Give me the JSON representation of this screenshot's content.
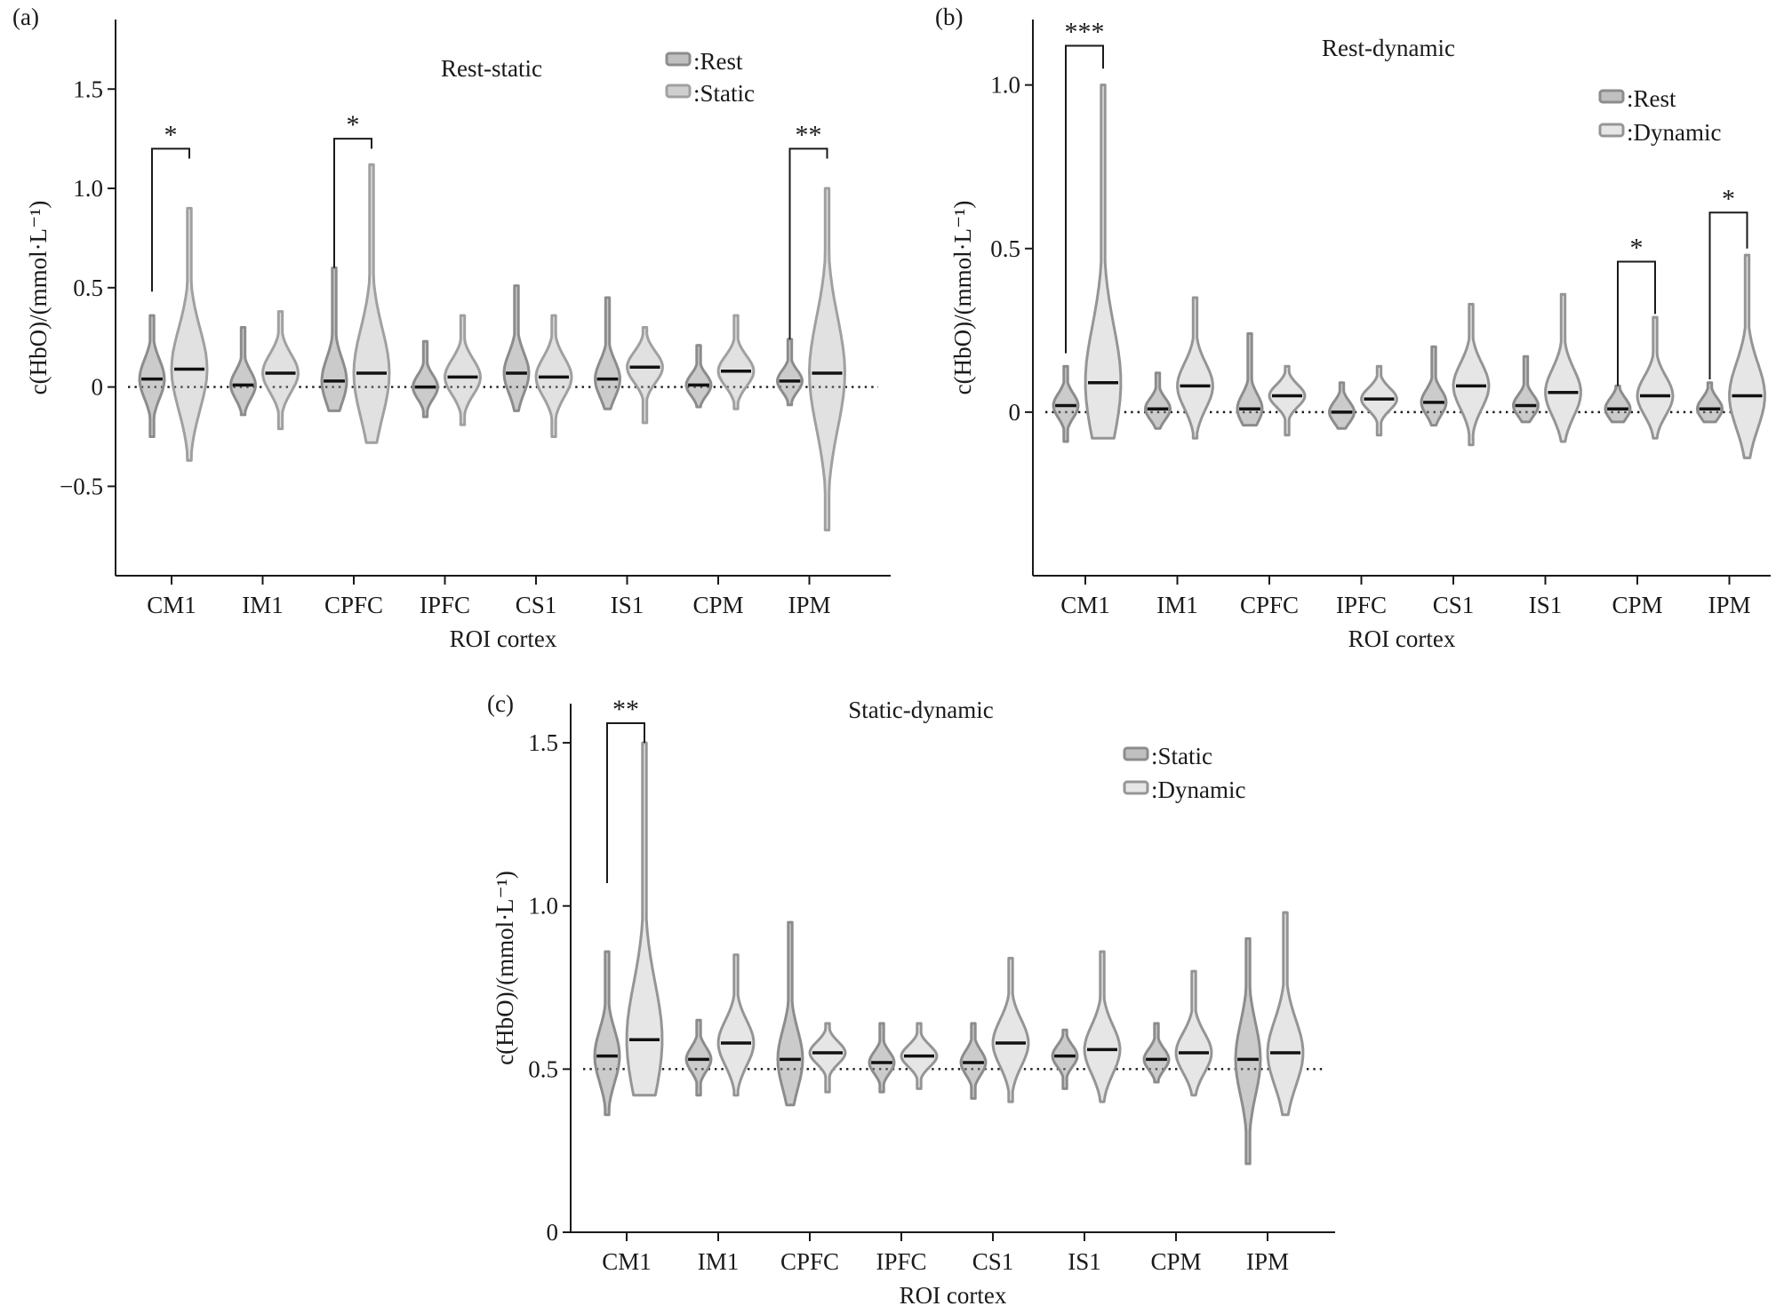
{
  "chart_data": [
    {
      "type": "violin",
      "panel_label": "(a)",
      "title": "Rest-static",
      "xlabel": "ROI cortex",
      "ylabel": "c(HbO)/(mmol·L⁻¹)",
      "ylim": [
        -0.95,
        1.85
      ],
      "yticks": [
        -0.5,
        0,
        0.5,
        1.0,
        1.5
      ],
      "ytick_labels": [
        "−0.5",
        "0",
        "0.5",
        "1.0",
        "1.5"
      ],
      "reference_line": 0,
      "categories": [
        "CM1",
        "IM1",
        "CPFC",
        "IPFC",
        "CS1",
        "IS1",
        "CPM",
        "IPM"
      ],
      "legend_position": "top-right",
      "series": [
        {
          "name": ":Rest",
          "color": "#8c8c8c",
          "fill": "#8c8c8c",
          "fill_opacity": 0.45,
          "medians": [
            0.04,
            0.01,
            0.03,
            0.0,
            0.07,
            0.04,
            0.01,
            0.03
          ],
          "min": [
            -0.25,
            -0.14,
            -0.12,
            -0.15,
            -0.12,
            -0.11,
            -0.1,
            -0.09
          ],
          "max": [
            0.36,
            0.3,
            0.6,
            0.23,
            0.51,
            0.45,
            0.21,
            0.24
          ]
        },
        {
          "name": ":Static",
          "color": "#a0a0a0",
          "fill": "#a8a8a8",
          "fill_opacity": 0.35,
          "medians": [
            0.09,
            0.07,
            0.07,
            0.05,
            0.05,
            0.1,
            0.08,
            0.07
          ],
          "min": [
            -0.37,
            -0.21,
            -0.28,
            -0.19,
            -0.25,
            -0.18,
            -0.11,
            -0.72
          ],
          "max": [
            0.9,
            0.38,
            1.12,
            0.36,
            0.36,
            0.3,
            0.36,
            1.0
          ]
        }
      ],
      "significance": [
        {
          "category": "CM1",
          "label": "*",
          "bracket_y": 1.2,
          "left_from": 0.48,
          "right_from": 1.15
        },
        {
          "category": "CPFC",
          "label": "*",
          "bracket_y": 1.25,
          "left_from": 0.6,
          "right_from": 1.2
        },
        {
          "category": "IPM",
          "label": "**",
          "bracket_y": 1.2,
          "left_from": 0.24,
          "right_from": 1.15
        }
      ]
    },
    {
      "type": "violin",
      "panel_label": "(b)",
      "title": "Rest-dynamic",
      "xlabel": "ROI cortex",
      "ylabel": "c(HbO)/(mmol·L⁻¹)",
      "ylim": [
        -0.5,
        1.2
      ],
      "yticks": [
        0,
        0.5,
        1.0
      ],
      "ytick_labels": [
        "0",
        "0.5",
        "1.0"
      ],
      "reference_line": 0,
      "categories": [
        "CM1",
        "IM1",
        "CPFC",
        "IPFC",
        "CS1",
        "IS1",
        "CPM",
        "IPM"
      ],
      "legend_position": "top-right",
      "series": [
        {
          "name": ":Rest",
          "color": "#8c8c8c",
          "fill": "#8c8c8c",
          "fill_opacity": 0.45,
          "medians": [
            0.02,
            0.01,
            0.01,
            0.0,
            0.03,
            0.02,
            0.01,
            0.01
          ],
          "min": [
            -0.09,
            -0.05,
            -0.04,
            -0.05,
            -0.04,
            -0.03,
            -0.03,
            -0.03
          ],
          "max": [
            0.14,
            0.12,
            0.24,
            0.09,
            0.2,
            0.17,
            0.08,
            0.09
          ]
        },
        {
          "name": ":Dynamic",
          "color": "#959595",
          "fill": "#e6e6e6",
          "fill_opacity": 1,
          "medians": [
            0.09,
            0.08,
            0.05,
            0.04,
            0.08,
            0.06,
            0.05,
            0.05
          ],
          "min": [
            -0.08,
            -0.08,
            -0.07,
            -0.07,
            -0.1,
            -0.09,
            -0.08,
            -0.14
          ],
          "max": [
            1.0,
            0.35,
            0.14,
            0.14,
            0.33,
            0.36,
            0.29,
            0.48
          ]
        }
      ],
      "significance": [
        {
          "category": "CM1",
          "label": "***",
          "bracket_y": 1.12,
          "left_from": 0.18,
          "right_from": 1.05
        },
        {
          "category": "CPM",
          "label": "*",
          "bracket_y": 0.46,
          "left_from": 0.08,
          "right_from": 0.3
        },
        {
          "category": "IPM",
          "label": "*",
          "bracket_y": 0.61,
          "left_from": 0.1,
          "right_from": 0.5
        }
      ]
    },
    {
      "type": "violin",
      "panel_label": "(c)",
      "title": "Static-dynamic",
      "xlabel": "ROI cortex",
      "ylabel": "c(HbO)/(mmol·L⁻¹)",
      "ylim": [
        0,
        1.62
      ],
      "yticks": [
        0,
        0.5,
        1.0,
        1.5
      ],
      "ytick_labels": [
        "0",
        "0.5",
        "1.0",
        "1.5"
      ],
      "reference_line": 0.5,
      "categories": [
        "CM1",
        "IM1",
        "CPFC",
        "IPFC",
        "CS1",
        "IS1",
        "CPM",
        "IPM"
      ],
      "legend_position": "top-right",
      "series": [
        {
          "name": ":Static",
          "color": "#8c8c8c",
          "fill": "#8c8c8c",
          "fill_opacity": 0.45,
          "medians": [
            0.54,
            0.53,
            0.53,
            0.52,
            0.52,
            0.54,
            0.53,
            0.53
          ],
          "min": [
            0.36,
            0.42,
            0.39,
            0.43,
            0.41,
            0.44,
            0.46,
            0.21
          ],
          "max": [
            0.86,
            0.65,
            0.95,
            0.64,
            0.64,
            0.62,
            0.64,
            0.9
          ]
        },
        {
          "name": ":Dynamic",
          "color": "#959595",
          "fill": "#e6e6e6",
          "fill_opacity": 1,
          "medians": [
            0.59,
            0.58,
            0.55,
            0.54,
            0.58,
            0.56,
            0.55,
            0.55
          ],
          "min": [
            0.42,
            0.42,
            0.43,
            0.44,
            0.4,
            0.4,
            0.42,
            0.36
          ],
          "max": [
            1.5,
            0.85,
            0.64,
            0.64,
            0.84,
            0.86,
            0.8,
            0.98
          ]
        }
      ],
      "significance": [
        {
          "category": "CM1",
          "label": "**",
          "bracket_y": 1.56,
          "left_from": 1.07,
          "right_from": 1.5
        }
      ]
    }
  ]
}
